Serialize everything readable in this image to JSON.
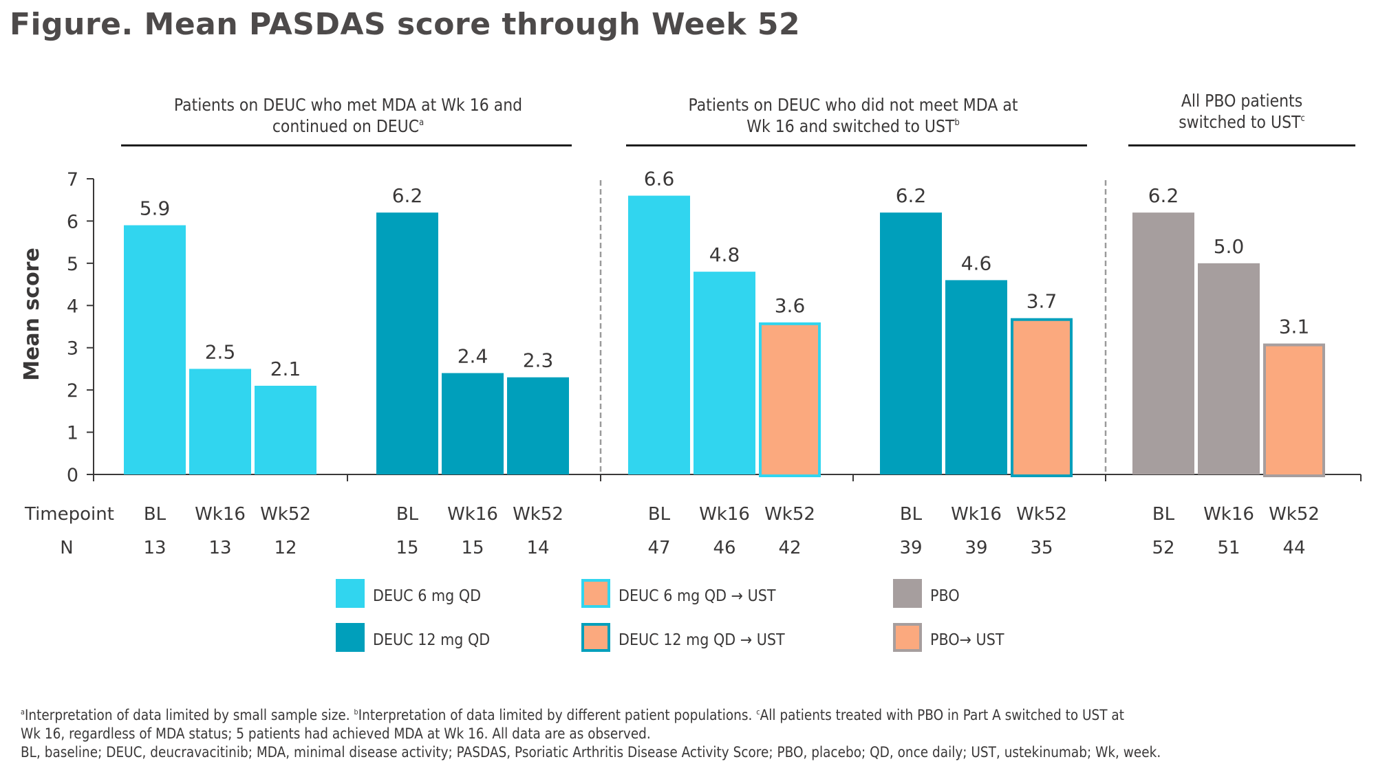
{
  "title": "Figure. Mean PASDAS score through Week 52",
  "panels": [
    {
      "line1": "Patients on DEUC who met MDA at Wk 16 and",
      "line2": "continued on DEUC",
      "sup": "a"
    },
    {
      "line1": "Patients on DEUC who did not meet MDA at",
      "line2": "Wk 16 and switched to UST",
      "sup": "b"
    },
    {
      "line1": "All PBO patients",
      "line2": "switched to UST",
      "sup": "c"
    }
  ],
  "row_labels": {
    "timepoint": "Timepoint",
    "n": "N"
  },
  "colors": {
    "deuc6": "#31d5ef",
    "deuc12": "#009fbb",
    "pbo": "#a69e9e",
    "ust": "#fba97e",
    "axis": "#3a3838",
    "divider": "#9a9a9a"
  },
  "legend": [
    {
      "label": "DEUC 6 mg QD",
      "fill": "#31d5ef",
      "border": "#31d5ef"
    },
    {
      "label": "DEUC 12 mg QD",
      "fill": "#009fbb",
      "border": "#009fbb"
    },
    {
      "label": "DEUC 6 mg QD →  UST",
      "fill": "#fba97e",
      "border": "#31d5ef"
    },
    {
      "label": "DEUC 12 mg QD →  UST",
      "fill": "#fba97e",
      "border": "#009fbb"
    },
    {
      "label": "PBO",
      "fill": "#a69e9e",
      "border": "#a69e9e"
    },
    {
      "label": "PBO→  UST",
      "fill": "#fba97e",
      "border": "#a69e9e"
    }
  ],
  "chart_data": {
    "type": "bar",
    "title": "Figure. Mean PASDAS score through Week 52",
    "xlabel": "Timepoint",
    "ylabel": "Mean score",
    "ylim": [
      0,
      7
    ],
    "yticks": [
      0,
      1,
      2,
      3,
      4,
      5,
      6,
      7
    ],
    "grid": false,
    "categories": [
      "BL",
      "Wk16",
      "Wk52"
    ],
    "groups": [
      {
        "panel": 0,
        "name": "DEUC 6 mg QD (met MDA, continued DEUC)",
        "bars": [
          {
            "timepoint": "BL",
            "value": 5.9,
            "label": "5.9",
            "n": "13",
            "series": "DEUC 6 mg QD"
          },
          {
            "timepoint": "Wk16",
            "value": 2.5,
            "label": "2.5",
            "n": "13",
            "series": "DEUC 6 mg QD"
          },
          {
            "timepoint": "Wk52",
            "value": 2.1,
            "label": "2.1",
            "n": "12",
            "series": "DEUC 6 mg QD"
          }
        ]
      },
      {
        "panel": 0,
        "name": "DEUC 12 mg QD (met MDA, continued DEUC)",
        "bars": [
          {
            "timepoint": "BL",
            "value": 6.2,
            "label": "6.2",
            "n": "15",
            "series": "DEUC 12 mg QD"
          },
          {
            "timepoint": "Wk16",
            "value": 2.4,
            "label": "2.4",
            "n": "15",
            "series": "DEUC 12 mg QD"
          },
          {
            "timepoint": "Wk52",
            "value": 2.3,
            "label": "2.3",
            "n": "14",
            "series": "DEUC 12 mg QD"
          }
        ]
      },
      {
        "panel": 1,
        "name": "DEUC 6 mg QD (did not meet MDA, switched to UST)",
        "bars": [
          {
            "timepoint": "BL",
            "value": 6.6,
            "label": "6.6",
            "n": "47",
            "series": "DEUC 6 mg QD"
          },
          {
            "timepoint": "Wk16",
            "value": 4.8,
            "label": "4.8",
            "n": "46",
            "series": "DEUC 6 mg QD"
          },
          {
            "timepoint": "Wk52",
            "value": 3.6,
            "label": "3.6",
            "n": "42",
            "series": "DEUC 6 mg QD → UST"
          }
        ]
      },
      {
        "panel": 1,
        "name": "DEUC 12 mg QD (did not meet MDA, switched to UST)",
        "bars": [
          {
            "timepoint": "BL",
            "value": 6.2,
            "label": "6.2",
            "n": "39",
            "series": "DEUC 12 mg QD"
          },
          {
            "timepoint": "Wk16",
            "value": 4.6,
            "label": "4.6",
            "n": "39",
            "series": "DEUC 12 mg QD"
          },
          {
            "timepoint": "Wk52",
            "value": 3.7,
            "label": "3.7",
            "n": "35",
            "series": "DEUC 12 mg QD → UST"
          }
        ]
      },
      {
        "panel": 2,
        "name": "PBO (switched to UST)",
        "bars": [
          {
            "timepoint": "BL",
            "value": 6.2,
            "label": "6.2",
            "n": "52",
            "series": "PBO"
          },
          {
            "timepoint": "Wk16",
            "value": 5.0,
            "label": "5.0",
            "n": "51",
            "series": "PBO"
          },
          {
            "timepoint": "Wk52",
            "value": 3.1,
            "label": "3.1",
            "n": "44",
            "series": "PBO → UST"
          }
        ]
      }
    ],
    "legend_position": "bottom",
    "legend": [
      "DEUC 6 mg QD",
      "DEUC 12 mg QD",
      "DEUC 6 mg QD → UST",
      "DEUC 12 mg QD → UST",
      "PBO",
      "PBO → UST"
    ]
  },
  "footnotes": {
    "line1_a": "Interpretation of data limited by small sample size. ",
    "line1_b": "Interpretation of data limited by different patient populations. ",
    "line1_c": "All patients treated with PBO in Part A switched to UST at",
    "line2": "Wk 16, regardless of MDA status; 5 patients had achieved MDA at Wk 16. All data are as observed.",
    "line3": "BL, baseline; DEUC, deucravacitinib; MDA, minimal disease activity; PASDAS, Psoriatic Arthritis Disease Activity Score; PBO, placebo; QD, once daily; UST, ustekinumab; Wk, week.",
    "sup_a": "a",
    "sup_b": "b",
    "sup_c": "c"
  }
}
